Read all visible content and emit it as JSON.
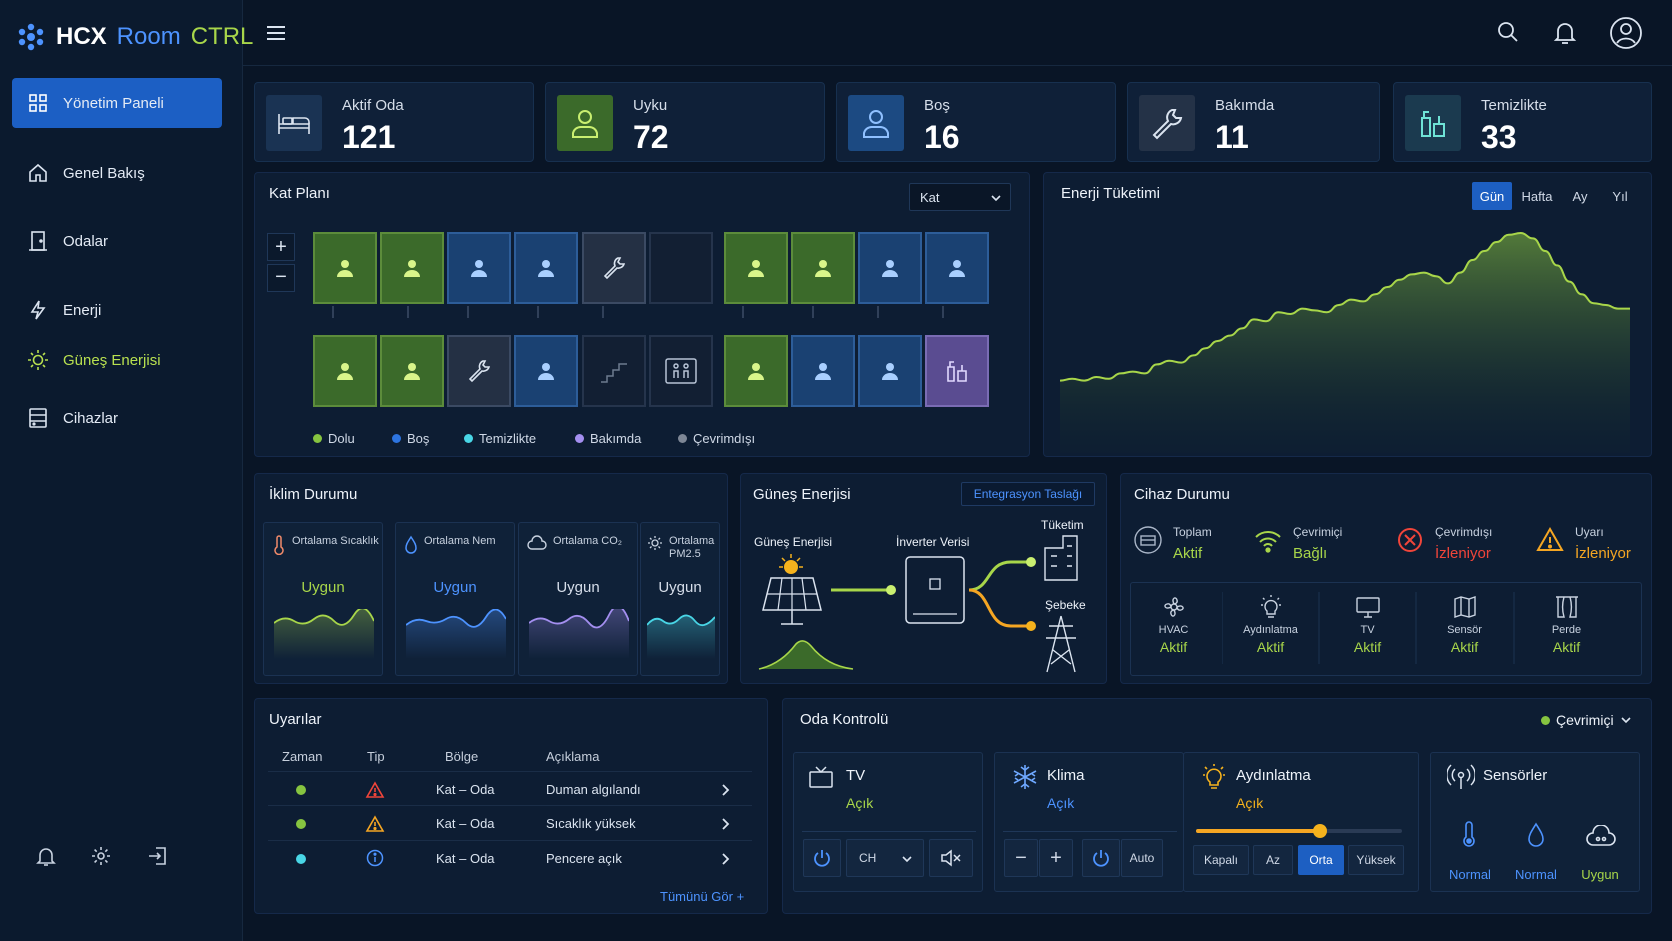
{
  "app": {
    "name_part1": "HCX",
    "name_part2": "Room",
    "name_part3": "CTRL"
  },
  "sidebar": {
    "items": [
      {
        "label": "Yönetim Paneli"
      },
      {
        "label": "Genel Bakış"
      },
      {
        "label": "Odalar"
      },
      {
        "label": "Enerji"
      },
      {
        "label": "Güneş Enerjisi"
      },
      {
        "label": "Cihazlar"
      }
    ]
  },
  "stats": [
    {
      "label": "Aktif Oda",
      "value": "121",
      "color": "#1a3353"
    },
    {
      "label": "Uyku",
      "value": "72",
      "color": "#3b6a2a"
    },
    {
      "label": "Boş",
      "value": "16",
      "color": "#1c4a82"
    },
    {
      "label": "Bakımda",
      "value": "11",
      "color": "#243247"
    },
    {
      "label": "Temizlikte",
      "value": "33",
      "color": "#1b3a4f"
    }
  ],
  "floorplan": {
    "title": "Kat Planı",
    "select": "Kat",
    "zoom_in": "+",
    "zoom_out": "−",
    "legend": [
      {
        "label": "Dolu",
        "color": "#86c440"
      },
      {
        "label": "Boş",
        "color": "#2d74e0"
      },
      {
        "label": "Temizlikte",
        "color": "#49d6e6"
      },
      {
        "label": "Bakımda",
        "color": "#a48ff0"
      },
      {
        "label": "Çevrimdışı",
        "color": "#7e8796"
      }
    ]
  },
  "energy": {
    "title": "Enerji Tüketimi",
    "tabs": [
      "Gün",
      "Hafta",
      "Ay",
      "Yıl"
    ],
    "active_tab": "Gün",
    "series": [
      0.18,
      0.19,
      0.18,
      0.2,
      0.19,
      0.22,
      0.23,
      0.22,
      0.27,
      0.29,
      0.28,
      0.32,
      0.36,
      0.4,
      0.43,
      0.47,
      0.52,
      0.51,
      0.56,
      0.55,
      0.58,
      0.57,
      0.56,
      0.6,
      0.63,
      0.62,
      0.66,
      0.7,
      0.74,
      0.77,
      0.78,
      0.76,
      0.72,
      0.78,
      0.85,
      0.9,
      0.95,
      0.99,
      1.0,
      0.97,
      0.9,
      0.82,
      0.73,
      0.66,
      0.61,
      0.6,
      0.58,
      0.58
    ]
  },
  "climate": {
    "title": "İklim Durumu",
    "cards": [
      {
        "label": "Ortalama Sıcaklık",
        "value": "Uygun",
        "color": "#a8d64a"
      },
      {
        "label": "Ortalama Nem",
        "value": "Uygun",
        "color": "#4d93ff"
      },
      {
        "label": "Ortalama CO₂",
        "value": "Uygun",
        "color": "#a48ff0"
      },
      {
        "label": "Ortalama PM2.5",
        "value": "Uygun",
        "color": "#49d6e6"
      }
    ]
  },
  "solar": {
    "title": "Güneş Enerjisi",
    "button": "Entegrasyon Taslağı",
    "source": "Güneş Enerjisi",
    "inverter": "İnverter Verisi",
    "consumption": "Tüketim",
    "grid": "Şebeke"
  },
  "devices": {
    "title": "Cihaz Durumu",
    "summary": [
      {
        "label": "Toplam",
        "value": "Aktif",
        "color": "#a8d64a"
      },
      {
        "label": "Çevrimiçi",
        "value": "Bağlı",
        "color": "#a8d64a"
      },
      {
        "label": "Çevrimdışı",
        "value": "İzleniyor",
        "color": "#f0453a"
      },
      {
        "label": "Uyarı",
        "value": "İzleniyor",
        "color": "#f5a623"
      }
    ],
    "items": [
      {
        "label": "HVAC",
        "value": "Aktif"
      },
      {
        "label": "Aydınlatma",
        "value": "Aktif"
      },
      {
        "label": "TV",
        "value": "Aktif"
      },
      {
        "label": "Sensör",
        "value": "Aktif"
      },
      {
        "label": "Perde",
        "value": "Aktif"
      }
    ]
  },
  "alerts": {
    "title": "Uyarılar",
    "columns": [
      "Zaman",
      "Tip",
      "Bölge",
      "Açıklama"
    ],
    "rows": [
      {
        "zone": "Kat – Oda",
        "desc": "Duman algılandı",
        "dot": "#86c440",
        "icon_color": "#f0453a"
      },
      {
        "zone": "Kat – Oda",
        "desc": "Sıcaklık yüksek",
        "dot": "#86c440",
        "icon_color": "#f5a623"
      },
      {
        "zone": "Kat – Oda",
        "desc": "Pencere açık",
        "dot": "#49d6e6",
        "icon_color": "#4d93ff"
      }
    ],
    "see_all": "Tümünü Gör +"
  },
  "room_control": {
    "title": "Oda Kontrolü",
    "status": "Çevrimiçi",
    "tv": {
      "title": "TV",
      "state": "Açık",
      "ch": "CH"
    },
    "ac": {
      "title": "Klima",
      "state": "Açık",
      "auto": "Auto"
    },
    "light": {
      "title": "Aydınlatma",
      "state": "Açık",
      "level": 0.6,
      "levels": [
        "Kapalı",
        "Az",
        "Orta",
        "Yüksek"
      ],
      "active_level": "Orta"
    },
    "sensors": {
      "title": "Sensörler",
      "values": [
        "Normal",
        "Normal",
        "Uygun"
      ]
    }
  }
}
